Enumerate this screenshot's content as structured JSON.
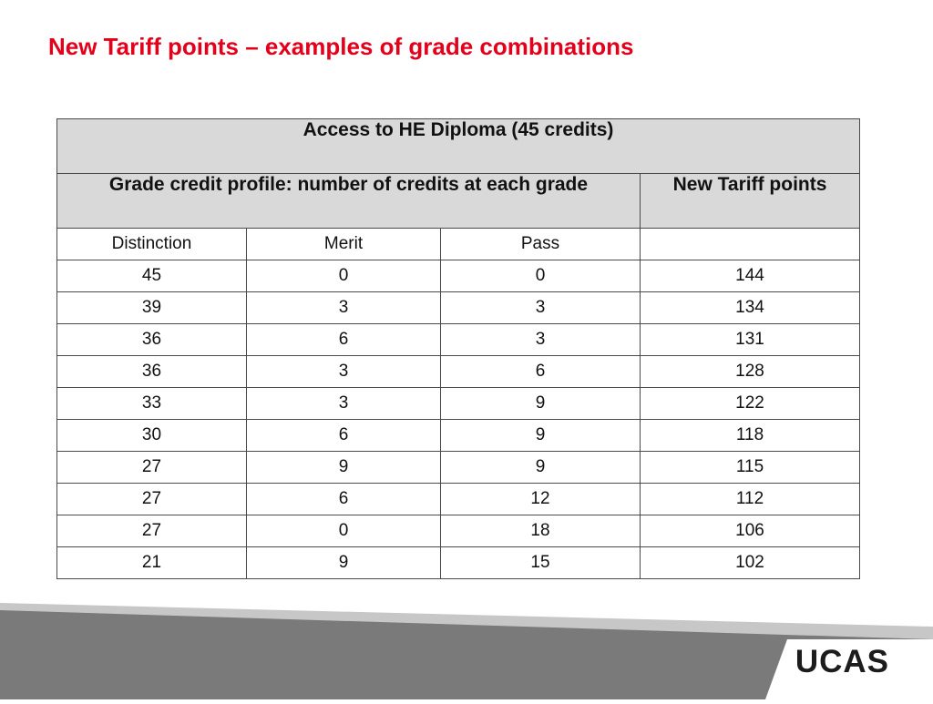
{
  "title": "New Tariff points – examples of grade combinations",
  "table": {
    "heading": "Access to HE Diploma (45 credits)",
    "profile_header": "Grade credit profile: number of credits at each grade",
    "points_header": "New Tariff points",
    "columns": [
      "Distinction",
      "Merit",
      "Pass"
    ],
    "rows": [
      [
        "45",
        "0",
        "0",
        "144"
      ],
      [
        "39",
        "3",
        "3",
        "134"
      ],
      [
        "36",
        "6",
        "3",
        "131"
      ],
      [
        "36",
        "3",
        "6",
        "128"
      ],
      [
        "33",
        "3",
        "9",
        "122"
      ],
      [
        "30",
        "6",
        "9",
        "118"
      ],
      [
        "27",
        "9",
        "9",
        "115"
      ],
      [
        "27",
        "6",
        "12",
        "112"
      ],
      [
        "27",
        "0",
        "18",
        "106"
      ],
      [
        "21",
        "9",
        "15",
        "102"
      ]
    ]
  },
  "footer": {
    "logo_text": "UCAS"
  },
  "colors": {
    "title": "#e3001b",
    "header_fill": "#d9d9d9",
    "footer_dark": "#7a7a7a",
    "footer_light": "#c7c7c7"
  }
}
